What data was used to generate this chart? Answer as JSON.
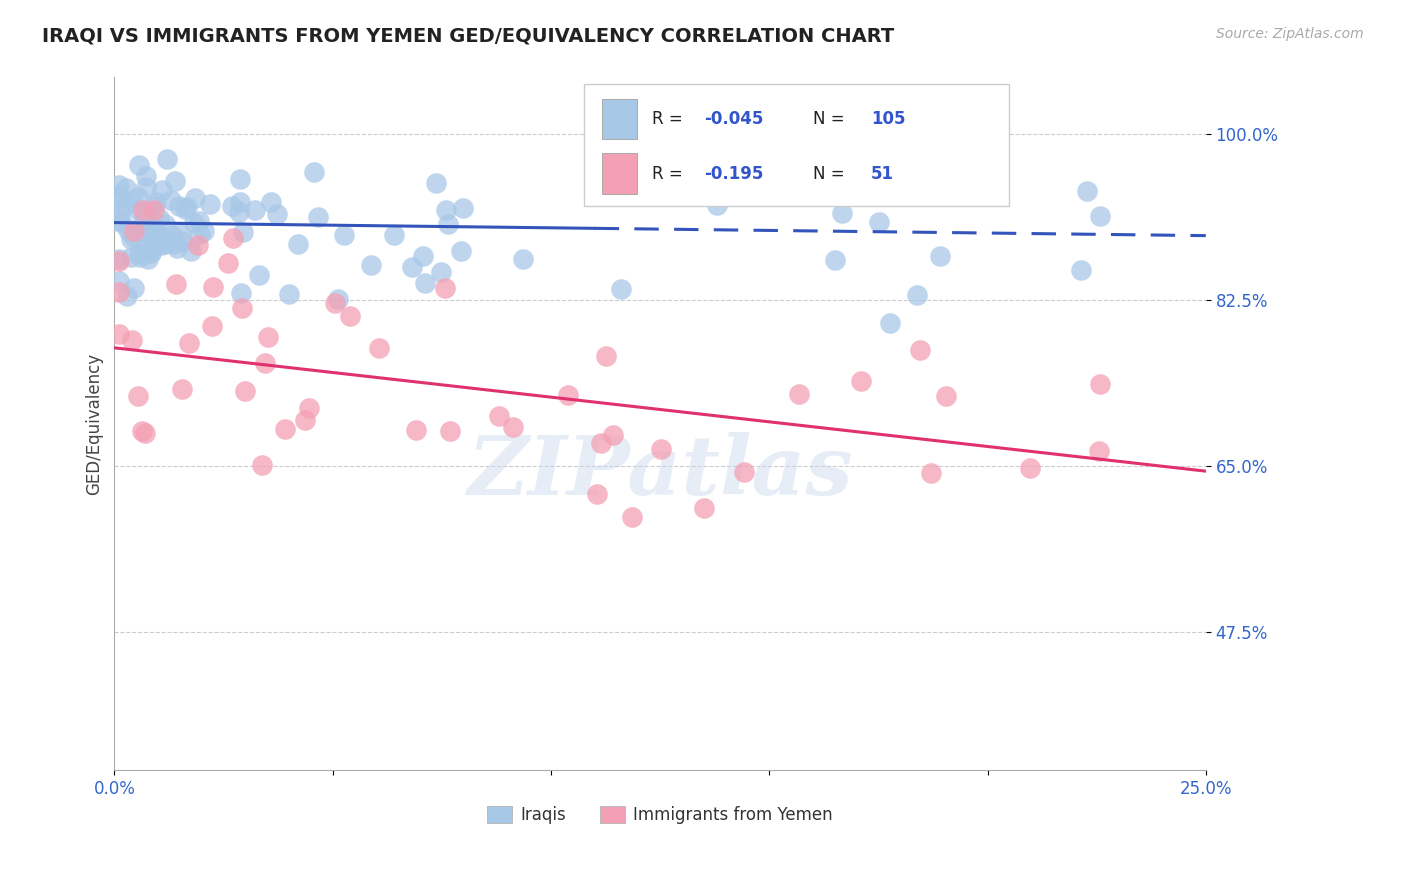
{
  "title": "IRAQI VS IMMIGRANTS FROM YEMEN GED/EQUIVALENCY CORRELATION CHART",
  "source": "Source: ZipAtlas.com",
  "ylabel": "GED/Equivalency",
  "xlim": [
    0.0,
    0.25
  ],
  "ylim": [
    0.33,
    1.06
  ],
  "yticks": [
    0.475,
    0.65,
    0.825,
    1.0
  ],
  "ytick_labels": [
    "47.5%",
    "65.0%",
    "82.5%",
    "100.0%"
  ],
  "xticks": [
    0.0,
    0.05,
    0.1,
    0.15,
    0.2,
    0.25
  ],
  "xtick_labels": [
    "0.0%",
    "",
    "",
    "",
    "",
    "25.0%"
  ],
  "blue_R": -0.045,
  "blue_N": 105,
  "pink_R": -0.195,
  "pink_N": 51,
  "blue_color": "#a8c8e8",
  "pink_color": "#f4a0b4",
  "blue_line_color": "#3355bb",
  "pink_line_color": "#e03070",
  "background_color": "#ffffff",
  "legend_label_blue": "Iraqis",
  "legend_label_pink": "Immigrants from Yemen",
  "blue_line_solid_end": 0.11,
  "blue_intercept": 0.907,
  "blue_slope": -0.055,
  "pink_intercept": 0.775,
  "pink_slope": -0.52
}
